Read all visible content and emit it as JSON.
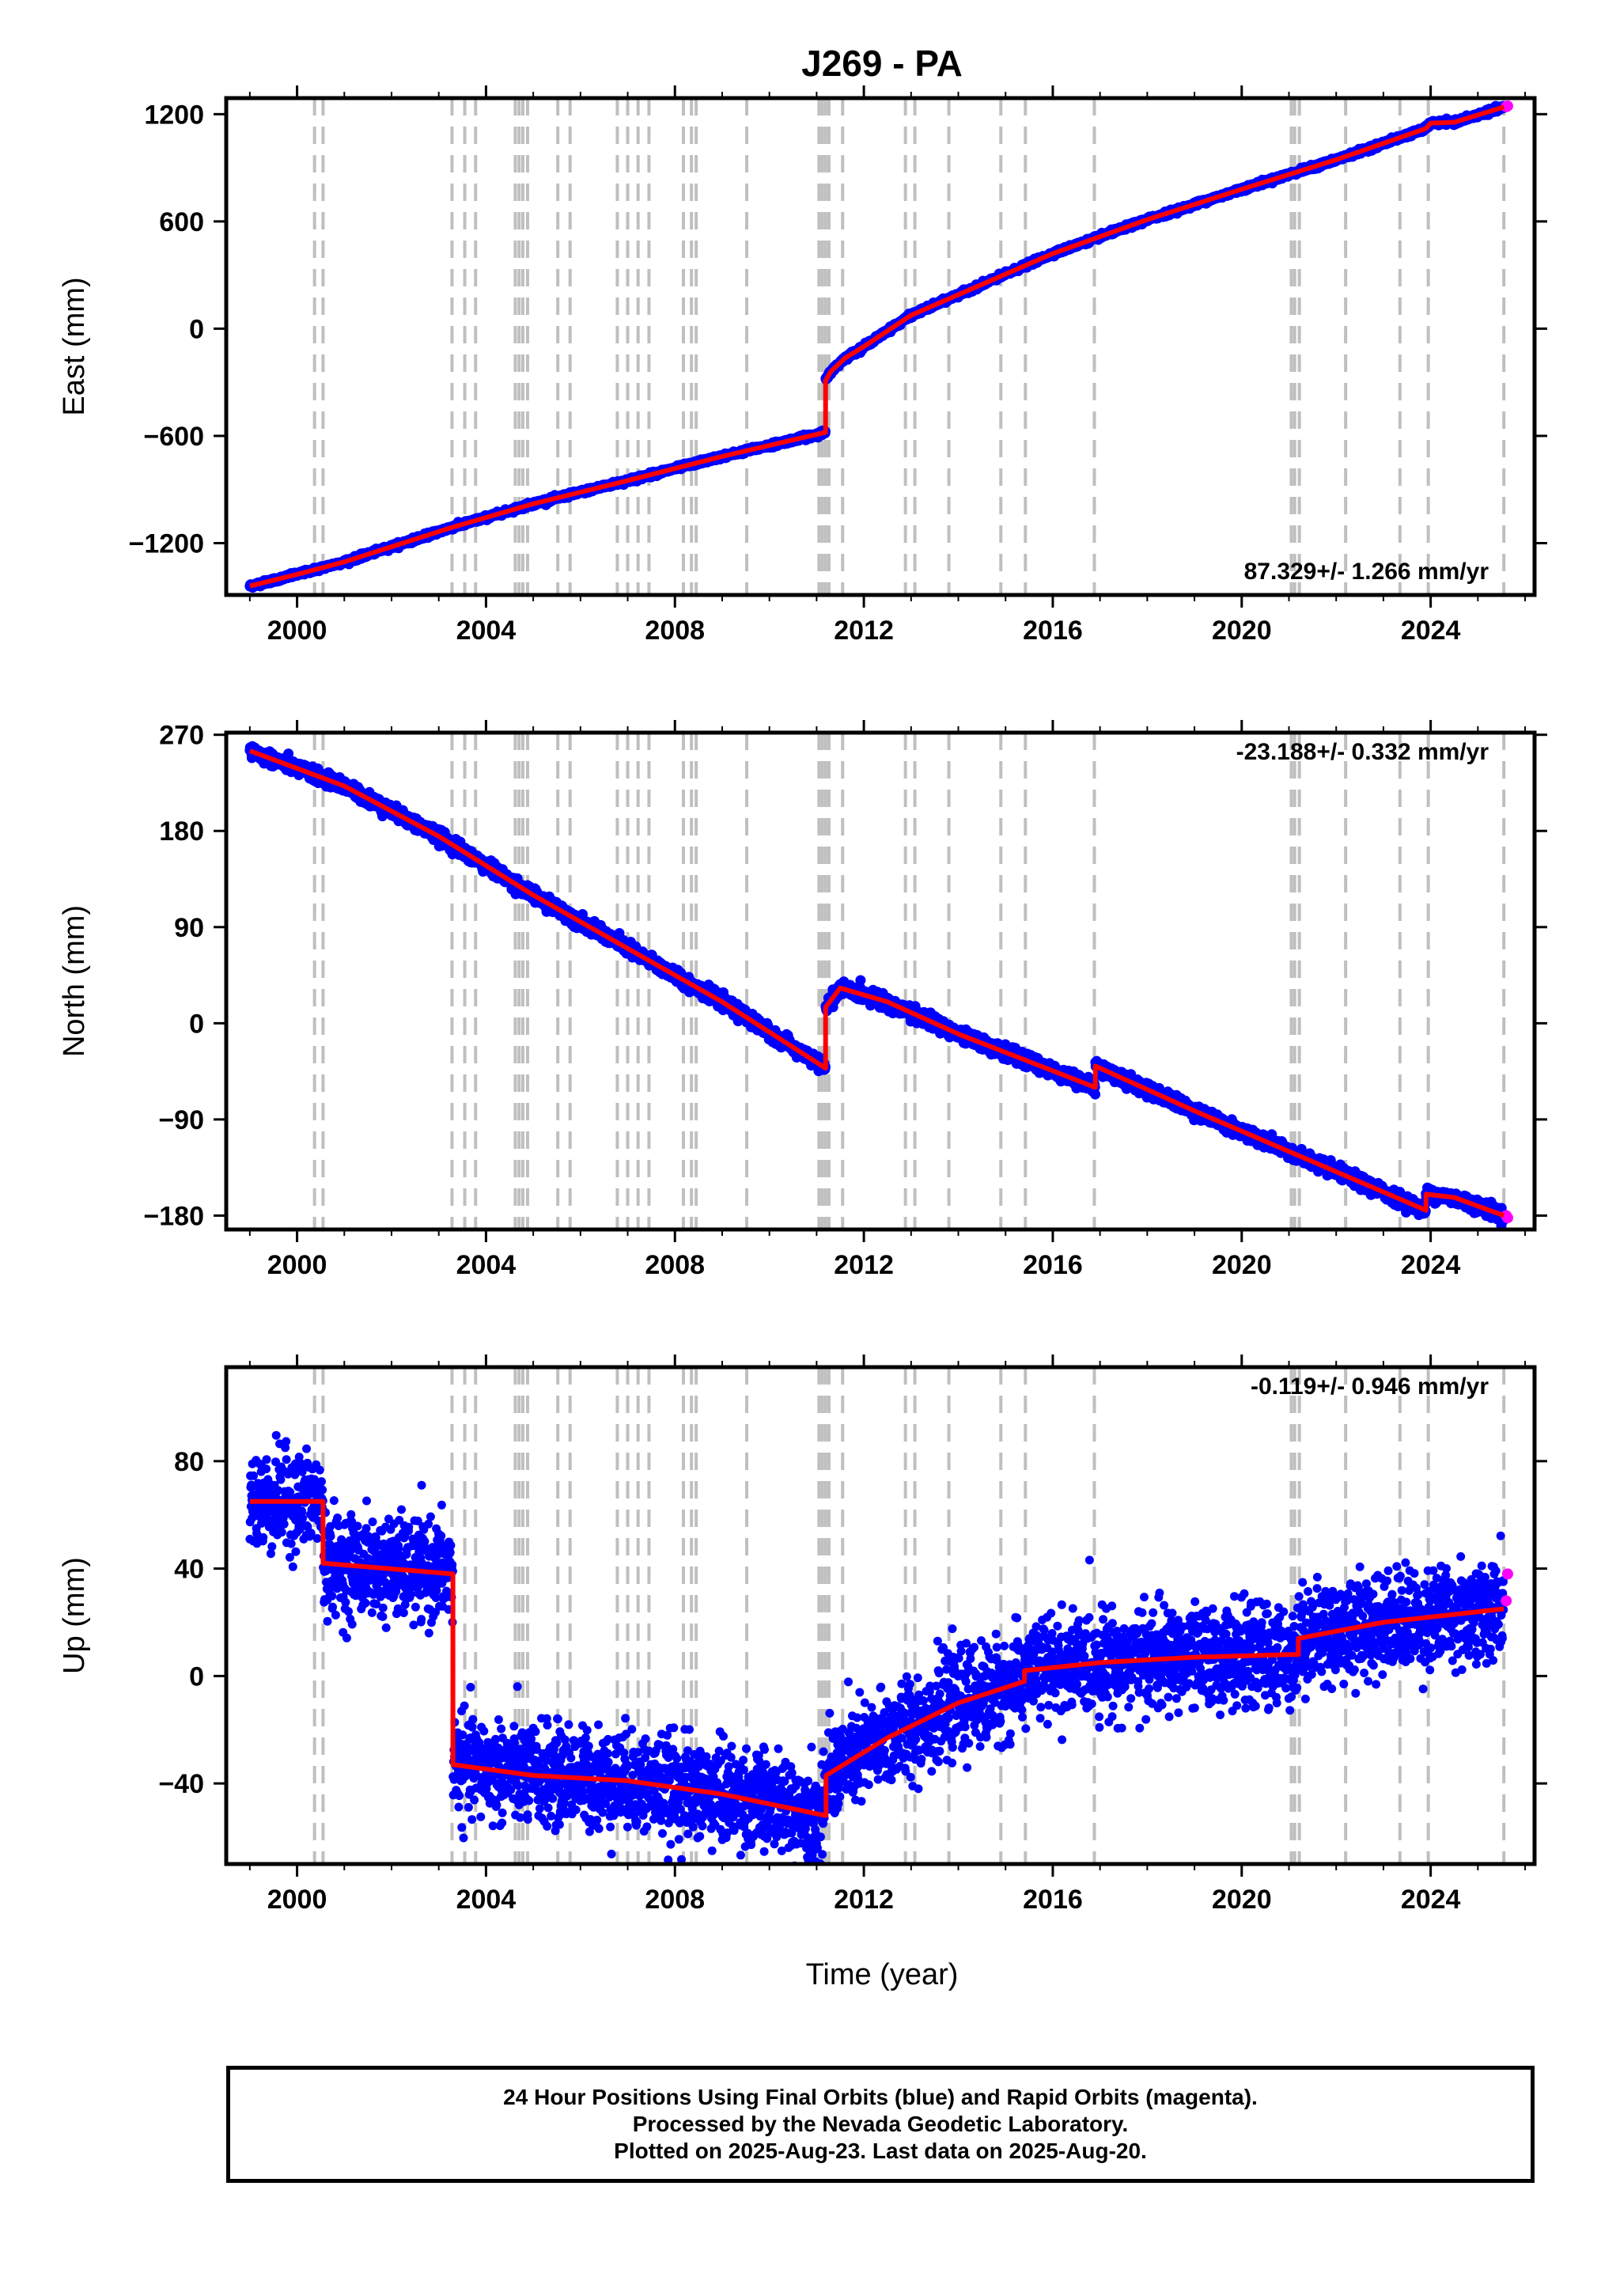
{
  "title": "J269 - PA",
  "xlabel": "Time (year)",
  "x_ticks": [
    2000,
    2004,
    2008,
    2012,
    2016,
    2020,
    2024
  ],
  "xlim": [
    1998.5,
    2026.2
  ],
  "event_lines": [
    2000.37,
    2000.55,
    2003.28,
    2003.55,
    2003.78,
    2004.62,
    2004.7,
    2004.78,
    2004.88,
    2005.52,
    2005.78,
    2006.78,
    2007.0,
    2007.22,
    2007.45,
    2008.18,
    2008.35,
    2008.45,
    2009.52,
    2011.05,
    2011.12,
    2011.19,
    2011.26,
    2011.55,
    2012.88,
    2013.08,
    2013.8,
    2014.9,
    2015.42,
    2016.88,
    2021.05,
    2021.12,
    2021.22,
    2022.2,
    2023.35,
    2023.95,
    2025.55
  ],
  "caption": [
    "24 Hour Positions Using Final Orbits (blue) and Rapid Orbits (magenta).",
    "Processed by the Nevada Geodetic Laboratory.",
    "Plotted on 2025-Aug-23. Last data on 2025-Aug-20."
  ],
  "colors": {
    "final_orbits": "#0000ff",
    "rapid_orbits": "#ff00ff",
    "model": "#ff0000",
    "event_line": "#bfbfbf"
  },
  "chart_data": [
    {
      "type": "scatter",
      "ylabel": "East (mm)",
      "rate_label": "87.329+/- 1.266 mm/yr",
      "y_ticks": [
        -1200,
        -600,
        0,
        600,
        1200
      ],
      "ylim": [
        -1490,
        1290
      ],
      "model": {
        "x": [
          1999.0,
          2000.0,
          2001.0,
          2003.3,
          2005.0,
          2007.0,
          2009.0,
          2011.19,
          2011.19,
          2011.3,
          2011.6,
          2012.0,
          2013.0,
          2014.0,
          2016.0,
          2018.0,
          2020.0,
          2022.0,
          2023.9,
          2024.0,
          2024.5,
          2025.55
        ],
        "y": [
          -1440,
          -1375,
          -1305,
          -1110,
          -980,
          -850,
          -715,
          -580,
          -290,
          -240,
          -165,
          -100,
          75,
          190,
          420,
          610,
          780,
          945,
          1120,
          1150,
          1155,
          1240
        ]
      },
      "final_orbit_points": {
        "x_range": [
          1999.0,
          2025.55
        ],
        "scatter": 6
      },
      "rapid_orbit_points": {
        "x": [
          2025.6,
          2025.63
        ],
        "y": [
          1242,
          1246
        ]
      }
    },
    {
      "type": "scatter",
      "ylabel": "North (mm)",
      "rate_label": "-23.188+/- 0.332 mm/yr",
      "y_ticks": [
        -180,
        -90,
        0,
        90,
        180,
        270
      ],
      "ylim": [
        -193,
        272
      ],
      "model": {
        "x": [
          1999.0,
          2001.0,
          2003.0,
          2005.0,
          2007.0,
          2009.0,
          2011.19,
          2011.19,
          2011.5,
          2012.5,
          2014.0,
          2016.9,
          2016.9,
          2017.5,
          2019.0,
          2021.0,
          2023.9,
          2023.9,
          2024.5,
          2025.55
        ],
        "y": [
          255,
          222,
          175,
          120,
          70,
          20,
          -42,
          15,
          33,
          20,
          -10,
          -60,
          -40,
          -52,
          -82,
          -120,
          -175,
          -160,
          -163,
          -180
        ]
      },
      "final_orbit_points": {
        "x_range": [
          1999.0,
          2025.55
        ],
        "scatter": 3
      },
      "rapid_orbit_points": {
        "x": [
          2025.6,
          2025.63
        ],
        "y": [
          -180,
          -182
        ]
      }
    },
    {
      "type": "scatter",
      "ylabel": "Up (mm)",
      "rate_label": "-0.119+/- 0.946 mm/yr",
      "y_ticks": [
        -40,
        0,
        40,
        80
      ],
      "ylim": [
        -70,
        115
      ],
      "model": {
        "x": [
          1999.0,
          2000.55,
          2000.55,
          2003.3,
          2003.3,
          2005.0,
          2007.0,
          2009.0,
          2011.2,
          2011.2,
          2012.5,
          2014.0,
          2015.4,
          2015.4,
          2017.0,
          2019.0,
          2021.0,
          2021.2,
          2021.2,
          2023.0,
          2025.55
        ],
        "y": [
          65,
          65,
          42,
          38,
          -33,
          -37,
          -39,
          -44,
          -52,
          -37,
          -23,
          -10,
          -2,
          2,
          5,
          7,
          8,
          8,
          14,
          20,
          25
        ]
      },
      "final_orbit_points": {
        "x_range": [
          1999.0,
          2025.55
        ],
        "scatter": 9
      },
      "rapid_orbit_points": {
        "x": [
          2025.6,
          2025.63
        ],
        "y": [
          28,
          38
        ]
      }
    }
  ]
}
